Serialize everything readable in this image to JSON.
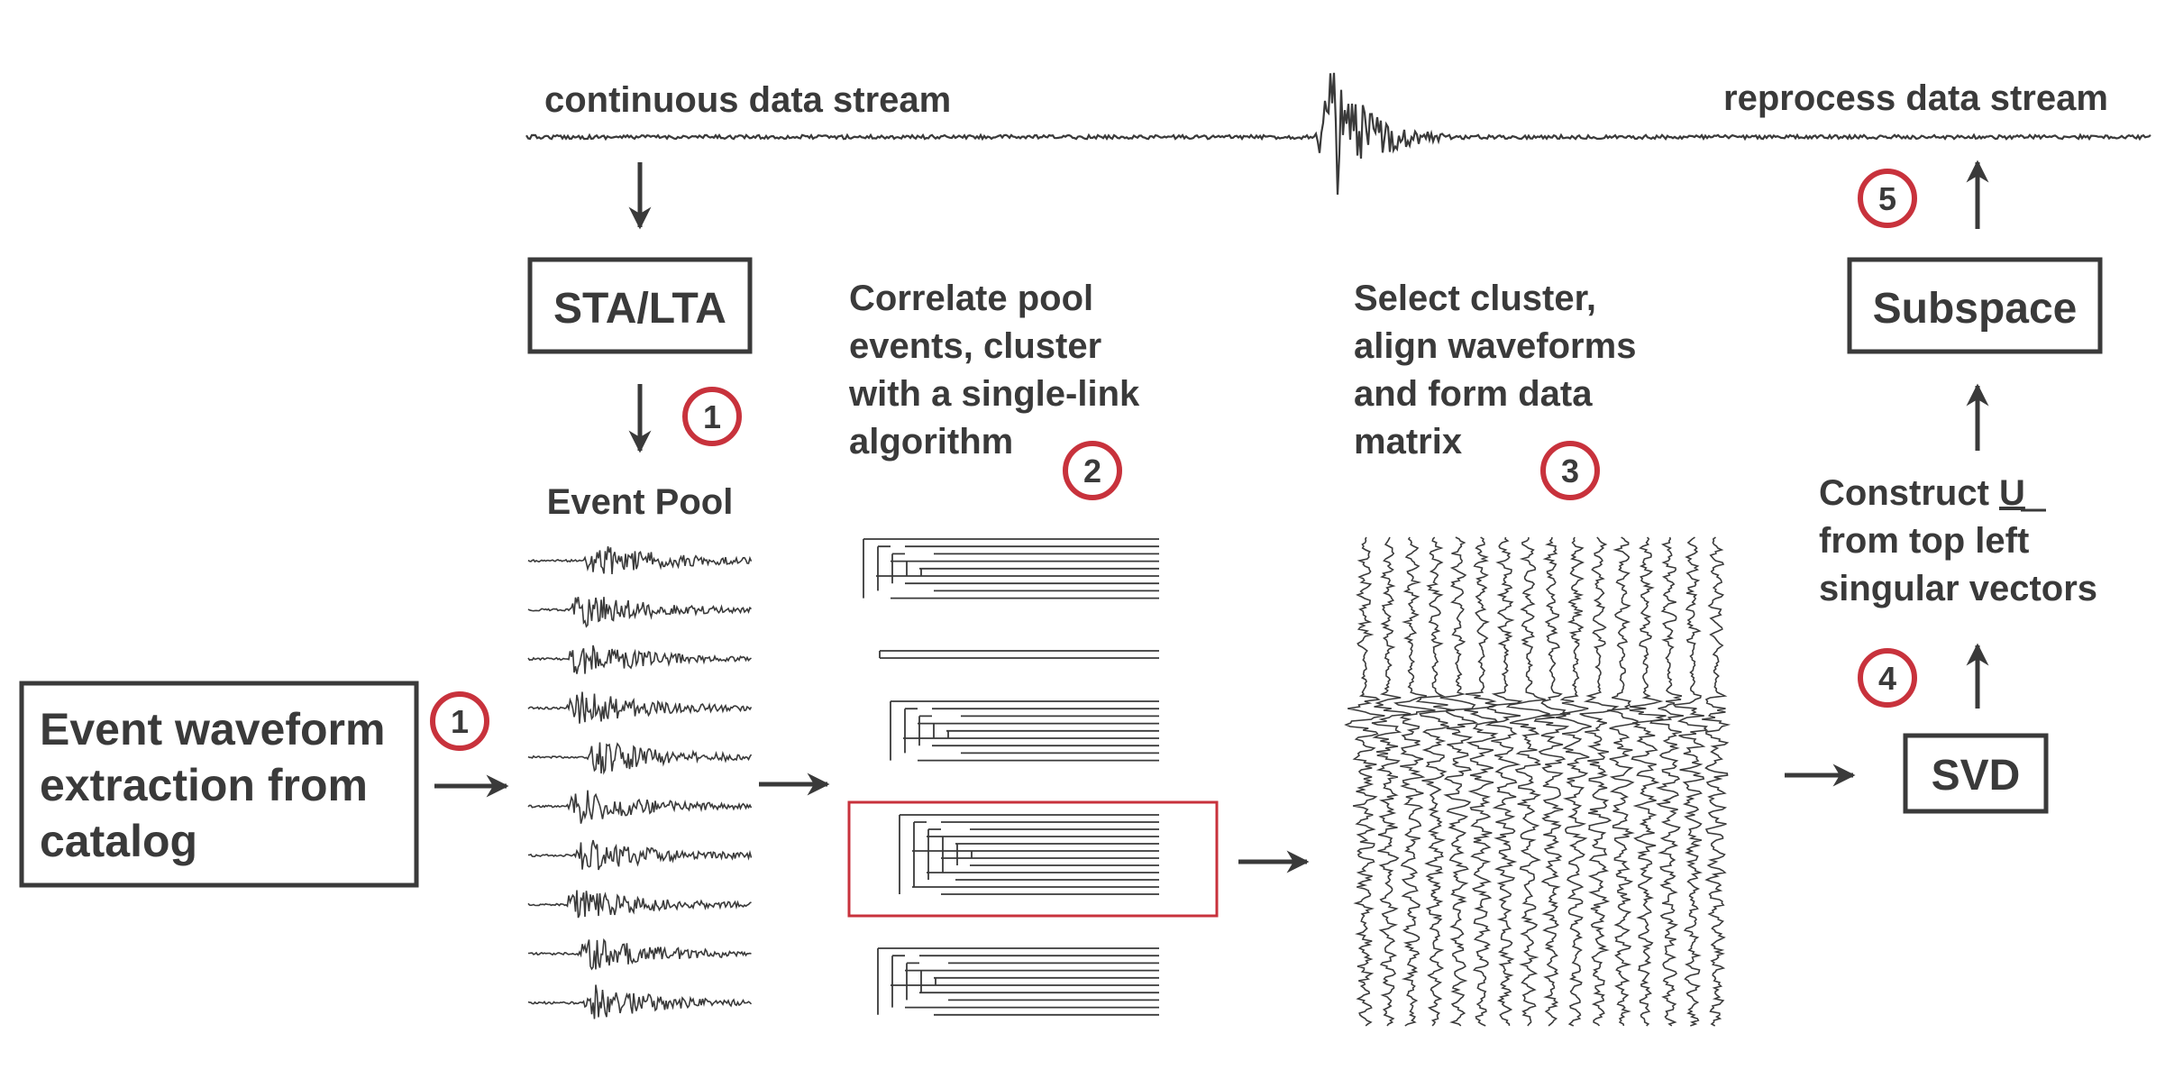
{
  "stream": {
    "left_label": "continuous data stream",
    "right_label": "reprocess data stream"
  },
  "boxes": {
    "extraction": [
      "Event waveform",
      "extraction from",
      "catalog"
    ],
    "sta_lta": "STA/LTA",
    "subspace": "Subspace",
    "svd": "SVD"
  },
  "labels": {
    "event_pool": "Event Pool",
    "correlate": [
      "Correlate pool",
      "events, cluster",
      "with a single-link",
      "algorithm"
    ],
    "select": [
      "Select cluster,",
      "align waveforms",
      "and form data",
      "matrix"
    ],
    "construct_prefix": "Construct ",
    "construct_u": "U",
    "construct": [
      "from top left",
      "singular vectors"
    ]
  },
  "steps": {
    "extraction": "1",
    "sta_lta": "1",
    "correlate": "2",
    "select": "3",
    "svd": "4",
    "subspace": "5"
  },
  "colors": {
    "ink": "#3a3a3a",
    "highlight": "#c8323c"
  }
}
